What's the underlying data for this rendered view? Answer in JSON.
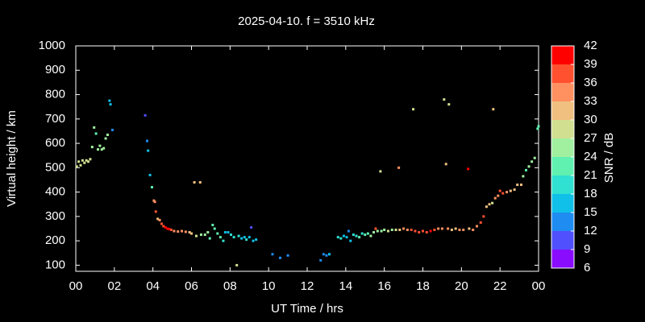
{
  "chart_data": {
    "type": "scatter",
    "title": "2025-04-10. f = 3510 kHz",
    "xlabel": "UT Time / hrs",
    "ylabel": "Virtual height / km",
    "xlim": [
      0,
      24
    ],
    "xticks": [
      {
        "value": 0,
        "label": "00"
      },
      {
        "value": 2,
        "label": "02"
      },
      {
        "value": 4,
        "label": "04"
      },
      {
        "value": 6,
        "label": "06"
      },
      {
        "value": 8,
        "label": "08"
      },
      10,
      12,
      14,
      16,
      18,
      20,
      22,
      {
        "value": 24,
        "label": "00"
      }
    ],
    "ylim": [
      75,
      1000
    ],
    "yticks": [
      100,
      200,
      300,
      400,
      500,
      600,
      700,
      800,
      900,
      1000
    ],
    "colorbar": {
      "label": "SNR / dB",
      "lim": [
        6,
        42
      ],
      "ticks": [
        6,
        9,
        12,
        15,
        18,
        21,
        24,
        27,
        30,
        33,
        36,
        39,
        42
      ],
      "colors": [
        "#8a0cff",
        "#5050ff",
        "#1e8cf0",
        "#10c0e8",
        "#30e0d0",
        "#60f0b0",
        "#a0f0a0",
        "#d0e090",
        "#f0c080",
        "#ff9060",
        "#ff5030",
        "#ff0000"
      ]
    },
    "x": [
      0.05,
      0.15,
      0.25,
      0.35,
      0.45,
      0.55,
      0.65,
      0.75,
      0.85,
      0.95,
      1.05,
      1.15,
      1.25,
      1.35,
      1.45,
      1.55,
      1.65,
      1.75,
      1.8,
      1.9,
      3.6,
      3.7,
      3.75,
      3.85,
      3.95,
      4.05,
      4.1,
      4.15,
      4.25,
      4.35,
      4.45,
      4.55,
      4.65,
      4.75,
      4.85,
      4.95,
      5.1,
      5.3,
      5.5,
      5.7,
      5.9,
      6.0,
      6.15,
      6.25,
      6.45,
      6.5,
      6.7,
      6.85,
      6.95,
      7.1,
      7.2,
      7.35,
      7.5,
      7.65,
      7.75,
      7.9,
      8.05,
      8.2,
      8.35,
      8.45,
      8.6,
      8.75,
      8.85,
      9.0,
      9.1,
      9.2,
      9.35,
      10.2,
      10.6,
      11,
      12.7,
      12.85,
      13.0,
      13.15,
      13.6,
      13.75,
      13.9,
      14.05,
      14.15,
      14.25,
      14.4,
      14.55,
      14.7,
      14.85,
      15.0,
      15.15,
      15.3,
      15.45,
      15.55,
      15.65,
      15.8,
      15.85,
      16.0,
      16.2,
      16.4,
      16.6,
      16.75,
      16.8,
      17.0,
      17.2,
      17.4,
      17.5,
      17.6,
      17.8,
      18.0,
      18.2,
      18.4,
      18.6,
      18.8,
      19.0,
      19.1,
      19.2,
      19.3,
      19.35,
      19.5,
      19.7,
      19.9,
      20.1,
      20.35,
      20.4,
      20.6,
      20.8,
      21.0,
      21.15,
      21.3,
      21.45,
      21.6,
      21.65,
      21.75,
      21.9,
      22.0,
      22.15,
      22.35,
      22.55,
      22.75,
      22.9,
      23.1,
      23.2,
      23.35,
      23.5,
      23.65,
      23.8,
      23.95,
      24.0
    ],
    "values": [
      505,
      525,
      510,
      530,
      520,
      530,
      525,
      535,
      585,
      665,
      640,
      575,
      590,
      575,
      580,
      620,
      635,
      775,
      760,
      655,
      715,
      610,
      570,
      470,
      420,
      365,
      360,
      320,
      290,
      285,
      270,
      260,
      255,
      250,
      248,
      245,
      240,
      238,
      240,
      237,
      235,
      230,
      440,
      220,
      440,
      225,
      225,
      235,
      210,
      265,
      250,
      230,
      215,
      200,
      235,
      235,
      225,
      215,
      100,
      220,
      210,
      215,
      205,
      215,
      255,
      200,
      205,
      145,
      130,
      140,
      120,
      145,
      140,
      145,
      215,
      210,
      220,
      215,
      240,
      200,
      225,
      220,
      215,
      230,
      225,
      230,
      220,
      235,
      250,
      240,
      485,
      240,
      245,
      240,
      245,
      245,
      500,
      245,
      250,
      245,
      245,
      740,
      240,
      235,
      240,
      235,
      240,
      245,
      250,
      250,
      780,
      515,
      250,
      760,
      245,
      250,
      245,
      245,
      495,
      250,
      245,
      260,
      275,
      300,
      340,
      350,
      355,
      740,
      375,
      385,
      405,
      395,
      400,
      405,
      410,
      430,
      430,
      465,
      490,
      505,
      525,
      540,
      660,
      670
    ],
    "snr": [
      27,
      28,
      28,
      29,
      28,
      29,
      28,
      27,
      26,
      24,
      23,
      24,
      25,
      24,
      24,
      25,
      24,
      17,
      16,
      13,
      10,
      13,
      16,
      16,
      21,
      33,
      34,
      38,
      30,
      34,
      36,
      38,
      39,
      40,
      40,
      38,
      35,
      35,
      34,
      33,
      32,
      30,
      30,
      27,
      30,
      26,
      25,
      24,
      22,
      22,
      23,
      22,
      21,
      20,
      17,
      16,
      18,
      20,
      28,
      19,
      17,
      16,
      18,
      17,
      11,
      15,
      15,
      14,
      13,
      12,
      14,
      13,
      14,
      15,
      19,
      18,
      17,
      16,
      13,
      17,
      18,
      19,
      21,
      20,
      22,
      23,
      24,
      25,
      36,
      26,
      28,
      26,
      25,
      27,
      26,
      29,
      35,
      31,
      33,
      35,
      36,
      29,
      37,
      38,
      37,
      38,
      39,
      36,
      35,
      34,
      29,
      31,
      34,
      29,
      32,
      31,
      33,
      35,
      40,
      31,
      33,
      35,
      37,
      38,
      31,
      30,
      29,
      31,
      33,
      35,
      38,
      37,
      33,
      32,
      31,
      30,
      31,
      24,
      23,
      24,
      25,
      26,
      21,
      22
    ]
  }
}
